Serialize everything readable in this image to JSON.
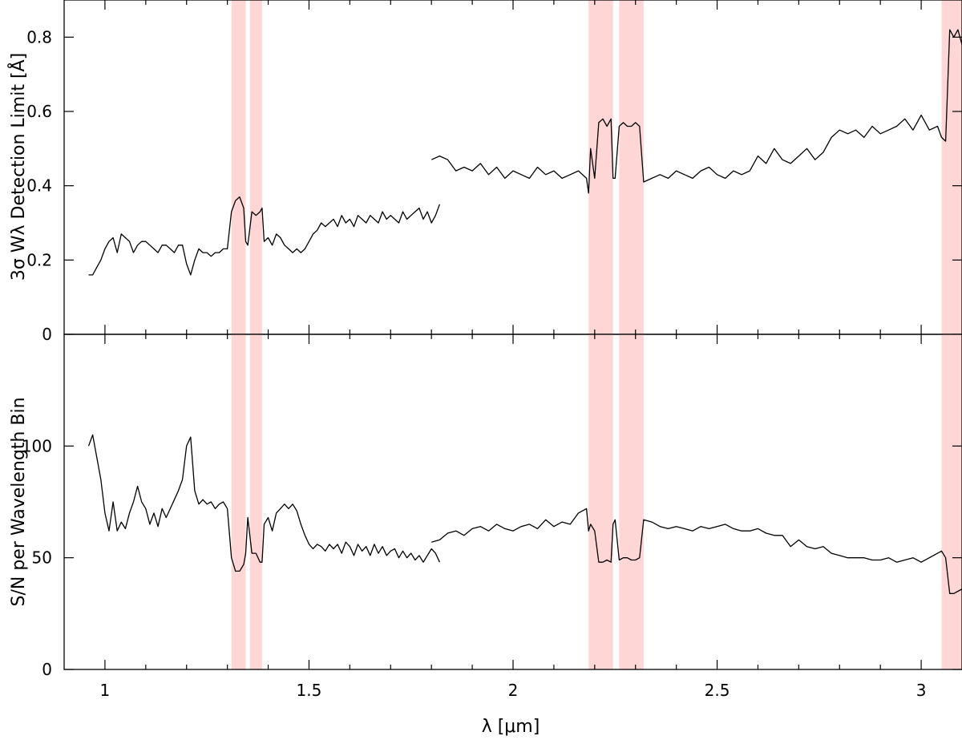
{
  "chart_data": [
    {
      "type": "line",
      "panel": "top",
      "ylabel": "3σ Wλ Detection Limit [Å]",
      "ylim": [
        0,
        0.9
      ],
      "xlim": [
        0.9,
        3.1
      ],
      "yticks": [
        0,
        0.2,
        0.4,
        0.6,
        0.8
      ],
      "ytick_labels": [
        "0",
        "0.2",
        "0.4",
        "0.6",
        "0.8"
      ],
      "shaded_bands": [
        [
          1.31,
          1.345
        ],
        [
          1.355,
          1.385
        ],
        [
          2.185,
          2.245
        ],
        [
          2.26,
          2.32
        ],
        [
          3.05,
          3.1
        ]
      ],
      "series": [
        {
          "x": [
            0.96,
            0.97,
            0.98,
            0.99,
            1.0,
            1.01,
            1.02,
            1.03,
            1.04,
            1.05,
            1.06,
            1.07,
            1.08,
            1.09,
            1.1,
            1.11,
            1.12,
            1.13,
            1.14,
            1.15,
            1.16,
            1.17,
            1.18,
            1.19,
            1.2,
            1.21,
            1.22,
            1.23,
            1.24,
            1.25,
            1.26,
            1.27,
            1.28,
            1.29,
            1.3,
            1.31,
            1.32,
            1.33,
            1.34,
            1.345,
            1.35,
            1.36,
            1.37,
            1.38,
            1.385,
            1.39,
            1.4,
            1.41,
            1.42,
            1.43,
            1.44,
            1.45,
            1.46,
            1.47,
            1.48,
            1.49,
            1.5,
            1.51,
            1.52,
            1.53,
            1.54,
            1.55,
            1.56,
            1.57,
            1.58,
            1.59,
            1.6,
            1.61,
            1.62,
            1.63,
            1.64,
            1.65,
            1.66,
            1.67,
            1.68,
            1.69,
            1.7,
            1.71,
            1.72,
            1.73,
            1.74,
            1.75,
            1.76,
            1.77,
            1.78,
            1.79,
            1.8,
            1.81,
            1.82
          ],
          "y": [
            0.16,
            0.16,
            0.18,
            0.2,
            0.23,
            0.25,
            0.26,
            0.22,
            0.27,
            0.26,
            0.25,
            0.22,
            0.24,
            0.25,
            0.25,
            0.24,
            0.23,
            0.22,
            0.24,
            0.24,
            0.23,
            0.22,
            0.24,
            0.24,
            0.19,
            0.16,
            0.2,
            0.23,
            0.22,
            0.22,
            0.21,
            0.22,
            0.22,
            0.23,
            0.23,
            0.33,
            0.36,
            0.37,
            0.34,
            0.25,
            0.24,
            0.33,
            0.32,
            0.33,
            0.34,
            0.25,
            0.26,
            0.24,
            0.27,
            0.26,
            0.24,
            0.23,
            0.22,
            0.23,
            0.22,
            0.23,
            0.25,
            0.27,
            0.28,
            0.3,
            0.29,
            0.3,
            0.31,
            0.29,
            0.32,
            0.3,
            0.31,
            0.29,
            0.32,
            0.31,
            0.3,
            0.32,
            0.31,
            0.3,
            0.33,
            0.31,
            0.32,
            0.31,
            0.3,
            0.33,
            0.31,
            0.32,
            0.33,
            0.34,
            0.31,
            0.33,
            0.3,
            0.32,
            0.35
          ]
        },
        {
          "x": [
            1.8,
            1.82,
            1.84,
            1.86,
            1.88,
            1.9,
            1.92,
            1.94,
            1.96,
            1.98,
            2.0,
            2.02,
            2.04,
            2.06,
            2.08,
            2.1,
            2.12,
            2.14,
            2.16,
            2.18,
            2.185,
            2.19,
            2.2,
            2.21,
            2.22,
            2.23,
            2.24,
            2.245,
            2.25,
            2.26,
            2.27,
            2.28,
            2.29,
            2.3,
            2.31,
            2.32,
            2.34,
            2.36,
            2.38,
            2.4,
            2.42,
            2.44,
            2.46,
            2.48,
            2.5,
            2.52,
            2.54,
            2.56,
            2.58,
            2.6,
            2.62,
            2.64,
            2.66,
            2.68,
            2.7,
            2.72,
            2.74,
            2.76,
            2.78,
            2.8,
            2.82,
            2.84,
            2.86,
            2.88,
            2.9,
            2.92,
            2.94,
            2.96,
            2.98,
            3.0,
            3.02,
            3.04,
            3.05,
            3.06,
            3.07,
            3.08,
            3.09,
            3.1
          ],
          "y": [
            0.47,
            0.48,
            0.47,
            0.44,
            0.45,
            0.44,
            0.46,
            0.43,
            0.45,
            0.42,
            0.44,
            0.43,
            0.42,
            0.45,
            0.43,
            0.44,
            0.42,
            0.43,
            0.44,
            0.42,
            0.38,
            0.5,
            0.42,
            0.57,
            0.58,
            0.56,
            0.58,
            0.42,
            0.42,
            0.56,
            0.57,
            0.56,
            0.56,
            0.57,
            0.56,
            0.41,
            0.42,
            0.43,
            0.42,
            0.44,
            0.43,
            0.42,
            0.44,
            0.45,
            0.43,
            0.42,
            0.44,
            0.43,
            0.44,
            0.48,
            0.46,
            0.5,
            0.47,
            0.46,
            0.48,
            0.5,
            0.47,
            0.49,
            0.53,
            0.55,
            0.54,
            0.55,
            0.53,
            0.56,
            0.54,
            0.55,
            0.56,
            0.58,
            0.55,
            0.59,
            0.55,
            0.56,
            0.53,
            0.52,
            0.82,
            0.8,
            0.82,
            0.78
          ]
        }
      ]
    },
    {
      "type": "line",
      "panel": "bottom",
      "ylabel": "S/N per Wavelength Bin",
      "xlabel": "λ [μm]",
      "ylim": [
        0,
        150
      ],
      "xlim": [
        0.9,
        3.1
      ],
      "yticks": [
        0,
        50,
        100
      ],
      "ytick_labels": [
        "0",
        "50",
        "100"
      ],
      "xticks": [
        1,
        1.5,
        2,
        2.5,
        3
      ],
      "xtick_labels": [
        "1",
        "1.5",
        "2",
        "2.5",
        "3"
      ],
      "shaded_bands": [
        [
          1.31,
          1.345
        ],
        [
          1.355,
          1.385
        ],
        [
          2.185,
          2.245
        ],
        [
          2.26,
          2.32
        ],
        [
          3.05,
          3.1
        ]
      ],
      "series": [
        {
          "x": [
            0.96,
            0.97,
            0.98,
            0.99,
            1.0,
            1.01,
            1.02,
            1.03,
            1.04,
            1.05,
            1.06,
            1.07,
            1.08,
            1.09,
            1.1,
            1.11,
            1.12,
            1.13,
            1.14,
            1.15,
            1.16,
            1.17,
            1.18,
            1.19,
            1.2,
            1.21,
            1.22,
            1.23,
            1.24,
            1.25,
            1.26,
            1.27,
            1.28,
            1.29,
            1.3,
            1.31,
            1.32,
            1.33,
            1.34,
            1.345,
            1.35,
            1.36,
            1.37,
            1.38,
            1.385,
            1.39,
            1.4,
            1.41,
            1.42,
            1.43,
            1.44,
            1.45,
            1.46,
            1.47,
            1.48,
            1.49,
            1.5,
            1.51,
            1.52,
            1.53,
            1.54,
            1.55,
            1.56,
            1.57,
            1.58,
            1.59,
            1.6,
            1.61,
            1.62,
            1.63,
            1.64,
            1.65,
            1.66,
            1.67,
            1.68,
            1.69,
            1.7,
            1.71,
            1.72,
            1.73,
            1.74,
            1.75,
            1.76,
            1.77,
            1.78,
            1.79,
            1.8,
            1.81,
            1.82
          ],
          "y": [
            100,
            105,
            95,
            85,
            70,
            62,
            75,
            62,
            66,
            63,
            70,
            75,
            82,
            75,
            72,
            65,
            70,
            64,
            72,
            68,
            72,
            76,
            80,
            85,
            100,
            104,
            80,
            74,
            76,
            74,
            75,
            72,
            74,
            75,
            72,
            50,
            44,
            44,
            47,
            52,
            68,
            52,
            52,
            48,
            48,
            65,
            68,
            62,
            70,
            72,
            74,
            72,
            74,
            71,
            65,
            60,
            56,
            54,
            56,
            55,
            53,
            56,
            54,
            56,
            52,
            57,
            55,
            51,
            56,
            53,
            55,
            51,
            56,
            52,
            55,
            51,
            53,
            54,
            50,
            53,
            50,
            52,
            49,
            51,
            48,
            51,
            54,
            52,
            48
          ]
        },
        {
          "x": [
            1.8,
            1.82,
            1.84,
            1.86,
            1.88,
            1.9,
            1.92,
            1.94,
            1.96,
            1.98,
            2.0,
            2.02,
            2.04,
            2.06,
            2.08,
            2.1,
            2.12,
            2.14,
            2.16,
            2.18,
            2.185,
            2.19,
            2.2,
            2.21,
            2.22,
            2.23,
            2.24,
            2.245,
            2.25,
            2.26,
            2.27,
            2.28,
            2.29,
            2.3,
            2.31,
            2.32,
            2.34,
            2.36,
            2.38,
            2.4,
            2.42,
            2.44,
            2.46,
            2.48,
            2.5,
            2.52,
            2.54,
            2.56,
            2.58,
            2.6,
            2.62,
            2.64,
            2.66,
            2.68,
            2.7,
            2.72,
            2.74,
            2.76,
            2.78,
            2.8,
            2.82,
            2.84,
            2.86,
            2.88,
            2.9,
            2.92,
            2.94,
            2.96,
            2.98,
            3.0,
            3.02,
            3.04,
            3.05,
            3.06,
            3.07,
            3.08,
            3.09,
            3.1
          ],
          "y": [
            57,
            58,
            61,
            62,
            60,
            63,
            64,
            62,
            65,
            63,
            62,
            64,
            65,
            63,
            67,
            64,
            66,
            65,
            70,
            72,
            62,
            65,
            62,
            48,
            48,
            49,
            48,
            65,
            67,
            49,
            50,
            50,
            49,
            49,
            50,
            67,
            66,
            64,
            63,
            64,
            63,
            62,
            64,
            63,
            64,
            65,
            63,
            62,
            62,
            63,
            61,
            60,
            60,
            55,
            58,
            55,
            54,
            55,
            52,
            51,
            50,
            50,
            50,
            49,
            49,
            50,
            48,
            49,
            50,
            48,
            50,
            52,
            53,
            50,
            34,
            34,
            35,
            36
          ]
        }
      ]
    }
  ]
}
